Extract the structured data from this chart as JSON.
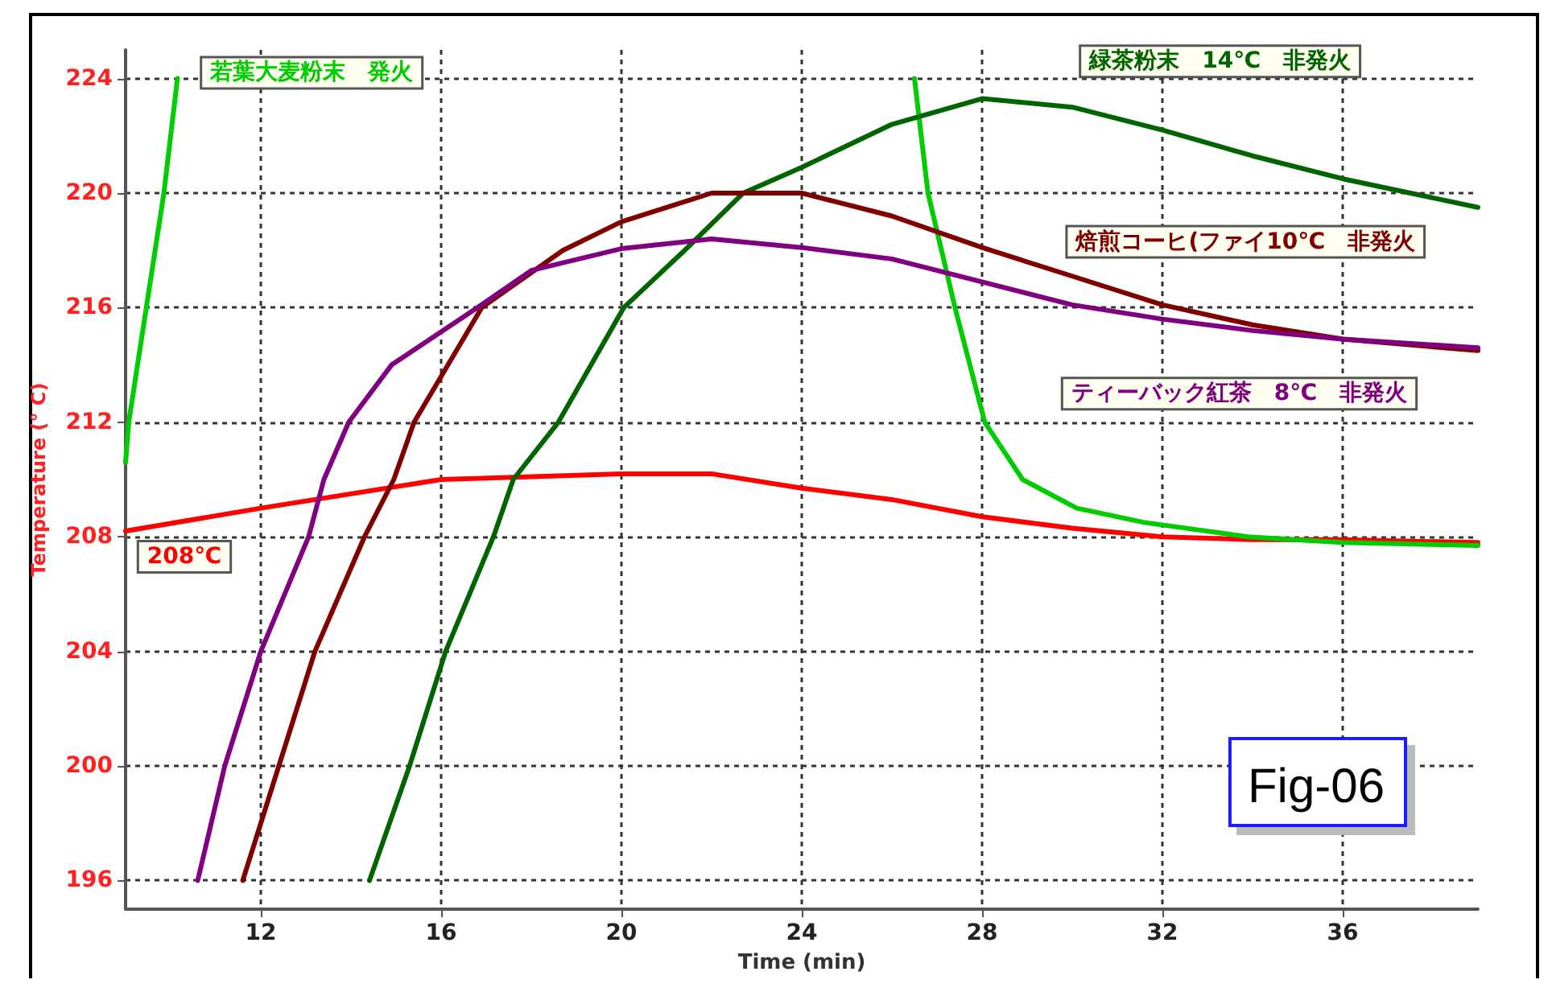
{
  "chart_data": {
    "type": "line",
    "xlabel": "Time (min)",
    "ylabel": "Temperature (° C)",
    "xlim": [
      9,
      39
    ],
    "ylim": [
      195,
      225
    ],
    "xticks": [
      12,
      16,
      20,
      24,
      28,
      32,
      36
    ],
    "yticks": [
      196,
      200,
      204,
      208,
      212,
      216,
      220,
      224
    ],
    "grid": true,
    "legend": false,
    "marker": "none",
    "annotations": [
      "Fig-06"
    ],
    "series": [
      {
        "name": "208℃",
        "color": "#ff0000",
        "x": [
          9,
          12,
          16,
          20,
          22,
          24,
          26,
          28,
          30,
          32,
          34,
          36,
          39
        ],
        "values": [
          208.2,
          209.0,
          210.0,
          210.2,
          210.2,
          209.7,
          209.3,
          208.7,
          208.3,
          208.0,
          207.9,
          207.9,
          207.8
        ]
      },
      {
        "name": "若葉大麦粉末　発火",
        "color": "#00cc00",
        "x": [
          9,
          9.07,
          9.85,
          10.15,
          18,
          26.5,
          26.8,
          27.4,
          28.06,
          28.9,
          30.1,
          31.6,
          33.9,
          36,
          39
        ],
        "values": [
          210.6,
          212,
          220,
          224,
          null,
          224,
          220,
          216,
          212,
          210,
          209,
          208.5,
          208,
          207.8,
          207.7
        ]
      },
      {
        "name": "緑茶粉末　14℃　非発火",
        "color": "#006400",
        "x": [
          14.41,
          15.3,
          16.1,
          17.16,
          17.6,
          18.6,
          20.05,
          21.4,
          22.7,
          24,
          26,
          28,
          30,
          32,
          34,
          36,
          39
        ],
        "values": [
          196,
          200,
          204,
          208,
          210,
          212,
          216,
          218,
          220,
          220.9,
          222.4,
          223.3,
          223.0,
          222.2,
          221.3,
          220.5,
          219.5
        ]
      },
      {
        "name": "焙煎コーヒ(ファイ10℃　非発火",
        "color": "#800000",
        "x": [
          11.6,
          12.4,
          13.2,
          14.3,
          14.95,
          15.4,
          16.9,
          18.7,
          20,
          22,
          24,
          26,
          28,
          30,
          32,
          34,
          36,
          39
        ],
        "values": [
          196,
          200,
          204,
          208,
          210,
          212,
          216,
          218,
          219,
          220.0,
          220.0,
          219.2,
          218.1,
          217.1,
          216.1,
          215.4,
          214.9,
          214.5
        ]
      },
      {
        "name": "ティーバック紅茶　8℃　非発火",
        "color": "#800080",
        "x": [
          10.6,
          11.2,
          12.0,
          13.06,
          13.4,
          13.95,
          14.9,
          16.8,
          18,
          20,
          22,
          24,
          26,
          28,
          30,
          32,
          34,
          36,
          39
        ],
        "values": [
          196,
          200,
          204,
          208,
          210,
          212,
          214,
          216,
          217.3,
          218.06,
          218.4,
          218.1,
          217.7,
          216.9,
          216.1,
          215.6,
          215.2,
          214.9,
          214.6
        ]
      }
    ]
  }
}
